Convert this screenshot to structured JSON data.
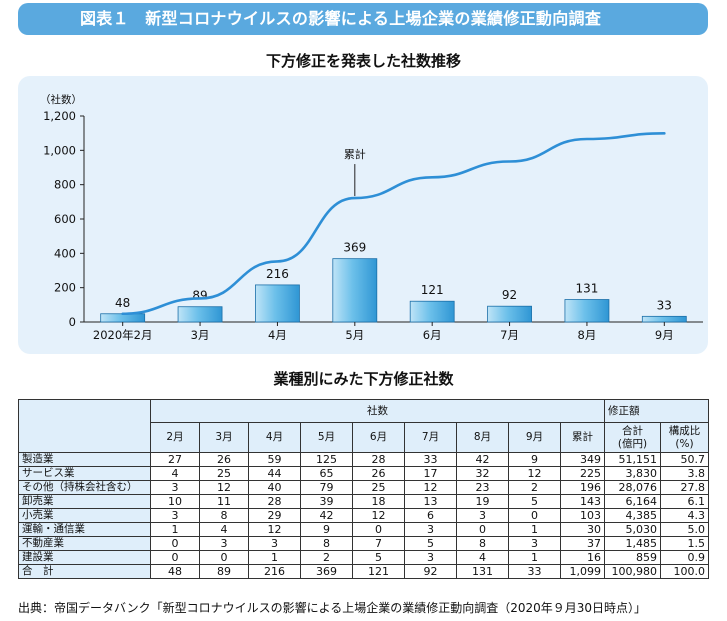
{
  "banner_title": "図表１　新型コロナウイルスの影響による上場企業の業績修正動向調査",
  "chart_title": "下方修正を発表した社数推移",
  "chart_data": {
    "type": "bar",
    "categories": [
      "2020年2月",
      "3月",
      "4月",
      "5月",
      "6月",
      "7月",
      "8月",
      "9月"
    ],
    "values": [
      48,
      89,
      216,
      369,
      121,
      92,
      131,
      33
    ],
    "cumulative": [
      48,
      137,
      353,
      722,
      843,
      935,
      1066,
      1099
    ],
    "ylabel": "（社数）",
    "ylim": [
      0,
      1200
    ],
    "yticks": [
      0,
      200,
      400,
      600,
      800,
      "1,000",
      "1,200"
    ],
    "line_annotation": "累計",
    "bar_color": "#3aa6dd",
    "line_color": "#2e8fd6"
  },
  "table_title": "業種別にみた下方修正社数",
  "table": {
    "header_count": "社数",
    "header_amount": "修正額",
    "months": [
      "2月",
      "3月",
      "4月",
      "5月",
      "6月",
      "7月",
      "8月",
      "9月"
    ],
    "col_cum": "累計",
    "col_total": "合計\n(億円)",
    "col_ratio": "構成比\n(%)",
    "rows": [
      {
        "name": "製造業",
        "m": [
          "27",
          "26",
          "59",
          "125",
          "28",
          "33",
          "42",
          "9"
        ],
        "cum": "349",
        "total": "51,151",
        "ratio": "50.7"
      },
      {
        "name": "サービス業",
        "m": [
          "4",
          "25",
          "44",
          "65",
          "26",
          "17",
          "32",
          "12"
        ],
        "cum": "225",
        "total": "3,830",
        "ratio": "3.8"
      },
      {
        "name": "その他（持株会社含む）",
        "m": [
          "3",
          "12",
          "40",
          "79",
          "25",
          "12",
          "23",
          "2"
        ],
        "cum": "196",
        "total": "28,076",
        "ratio": "27.8"
      },
      {
        "name": "卸売業",
        "m": [
          "10",
          "11",
          "28",
          "39",
          "18",
          "13",
          "19",
          "5"
        ],
        "cum": "143",
        "total": "6,164",
        "ratio": "6.1"
      },
      {
        "name": "小売業",
        "m": [
          "3",
          "8",
          "29",
          "42",
          "12",
          "6",
          "3",
          "0"
        ],
        "cum": "103",
        "total": "4,385",
        "ratio": "4.3"
      },
      {
        "name": "運輸・通信業",
        "m": [
          "1",
          "4",
          "12",
          "9",
          "0",
          "3",
          "0",
          "1"
        ],
        "cum": "30",
        "total": "5,030",
        "ratio": "5.0"
      },
      {
        "name": "不動産業",
        "m": [
          "0",
          "3",
          "3",
          "8",
          "7",
          "5",
          "8",
          "3"
        ],
        "cum": "37",
        "total": "1,485",
        "ratio": "1.5"
      },
      {
        "name": "建設業",
        "m": [
          "0",
          "0",
          "1",
          "2",
          "5",
          "3",
          "4",
          "1"
        ],
        "cum": "16",
        "total": "859",
        "ratio": "0.9"
      }
    ],
    "sum": {
      "name": "合　計",
      "m": [
        "48",
        "89",
        "216",
        "369",
        "121",
        "92",
        "131",
        "33"
      ],
      "cum": "1,099",
      "total": "100,980",
      "ratio": "100.0"
    }
  },
  "source": "出典：帝国データバンク「新型コロナウイルスの影響による上場企業の業績修正動向調査（2020年９月30日時点）」"
}
